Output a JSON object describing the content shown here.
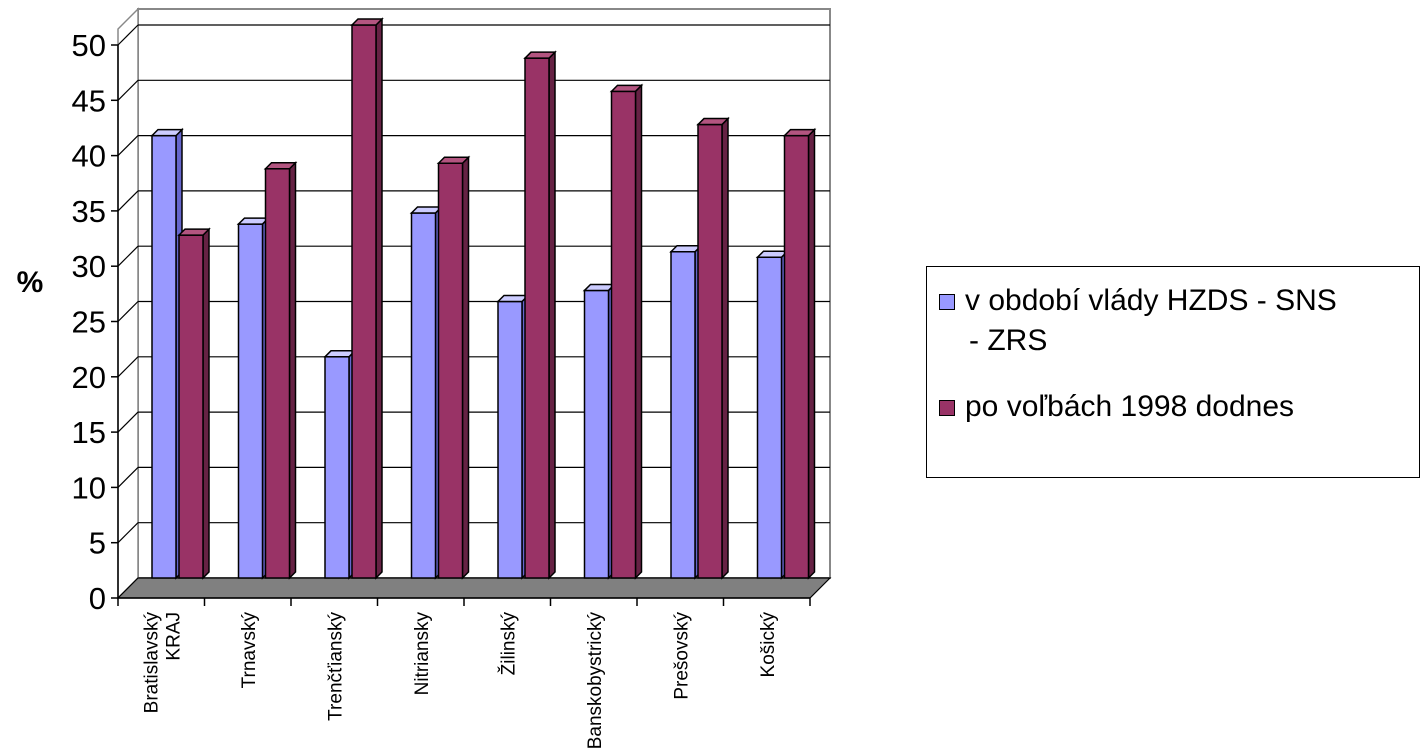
{
  "chart_data": {
    "type": "bar",
    "ylabel": "%",
    "ylim": [
      0,
      50
    ],
    "yticks": [
      0,
      5,
      10,
      15,
      20,
      25,
      30,
      35,
      40,
      45,
      50
    ],
    "grid": true,
    "legend_position": "right",
    "categories": [
      [
        "Bratislavský",
        "KRAJ"
      ],
      [
        "Trnavský"
      ],
      [
        "Trenčťianský"
      ],
      [
        "Nitriansky"
      ],
      [
        "Žilinský"
      ],
      [
        "Banskobystrický"
      ],
      [
        "Prešovský"
      ],
      [
        "Košický"
      ]
    ],
    "series": [
      {
        "name": "v období vlády HZDS - SNS - ZRS",
        "name_lines": [
          "v období vlády HZDS - SNS",
          "- ZRS"
        ],
        "color": "#9999ff",
        "values": [
          40,
          32,
          20,
          33,
          25,
          26,
          29.5,
          29
        ]
      },
      {
        "name": "po voľbách 1998 dodnes",
        "name_lines": [
          "po voľbách 1998 dodnes"
        ],
        "color": "#993366",
        "values": [
          31,
          37,
          50,
          37.5,
          47,
          44,
          41,
          40
        ]
      }
    ]
  }
}
